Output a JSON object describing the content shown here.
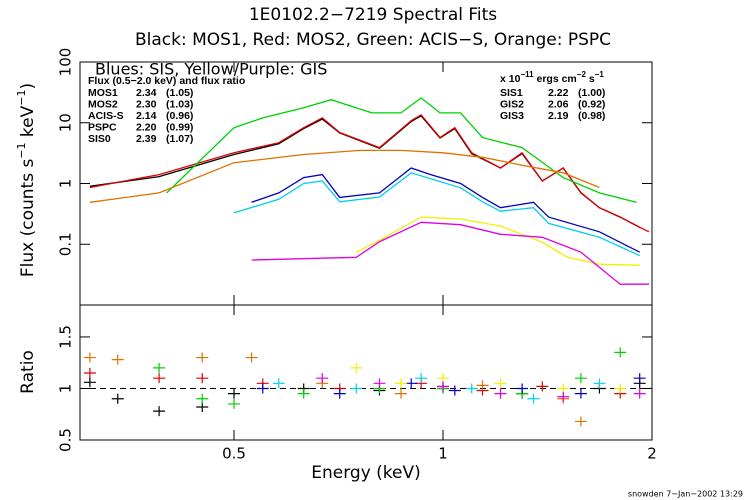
{
  "chart_data": [
    {
      "type": "line",
      "title": "1E0102.2−7219 Spectral Fits",
      "subtitle": "Black: MOS1, Red: MOS2, Green: ACIS−S, Orange: PSPC",
      "annotation": "Blues: SIS, Yellow/Purple: GIS",
      "table_header": "Flux (0.5−2.0 keV) and flux ratio",
      "units_label": [
        "x 10",
        "−11",
        " ergs cm",
        "−2",
        " s",
        "−1"
      ],
      "ylabel": [
        "Flux (counts s",
        "−1",
        " keV",
        "−1",
        ")"
      ],
      "xlog": true,
      "ylog": true,
      "xlim": [
        0.3,
        2
      ],
      "ylim": [
        0.01,
        100
      ],
      "yticks": [
        100,
        10,
        1,
        0.1
      ],
      "series": [
        {
          "name": "MOS1",
          "color": "#000000",
          "flux": 2.34,
          "flux_ratio": "(1.05)",
          "x": [
            0.31,
            0.39,
            0.5,
            0.58,
            0.63,
            0.67,
            0.71,
            0.81,
            0.9,
            0.93,
            0.99,
            1.04,
            1.1,
            1.21,
            1.3,
            1.39,
            1.49,
            1.58,
            1.68,
            1.8,
            1.92
          ],
          "values": [
            0.9,
            1.3,
            3.0,
            4.5,
            8.0,
            11.5,
            6.8,
            3.8,
            10.5,
            13,
            5.6,
            8.0,
            3.1,
            1.8,
            3.1,
            1.1,
            1.8,
            0.7,
            0.4,
            0.28,
            0.19
          ]
        },
        {
          "name": "MOS2",
          "color": "#e00000",
          "flux": 2.3,
          "flux_ratio": "(1.03)",
          "x": [
            0.31,
            0.39,
            0.5,
            0.58,
            0.63,
            0.67,
            0.71,
            0.81,
            0.9,
            0.93,
            0.99,
            1.04,
            1.1,
            1.21,
            1.3,
            1.39,
            1.49,
            1.58,
            1.68,
            1.8,
            1.92,
            1.98
          ],
          "values": [
            0.86,
            1.4,
            3.2,
            4.7,
            8.3,
            12,
            6.9,
            3.9,
            10.8,
            13.5,
            5.7,
            8.3,
            3.2,
            1.8,
            3.2,
            1.1,
            1.8,
            0.71,
            0.4,
            0.28,
            0.19,
            0.16
          ]
        },
        {
          "name": "ACIS-S",
          "color": "#00d000",
          "flux": 2.14,
          "flux_ratio": "(0.96)",
          "x": [
            0.4,
            0.5,
            0.55,
            0.63,
            0.69,
            0.79,
            0.87,
            0.93,
            0.99,
            1.06,
            1.14,
            1.3,
            1.49,
            1.68,
            1.9
          ],
          "values": [
            0.7,
            8.3,
            12,
            17.6,
            24,
            14.5,
            14.5,
            25.6,
            14.5,
            14.5,
            5.7,
            3.9,
            1.25,
            0.7,
            0.49
          ]
        },
        {
          "name": "PSPC",
          "color": "#e07000",
          "flux": 2.2,
          "flux_ratio": "(0.99)",
          "x": [
            0.31,
            0.39,
            0.5,
            0.63,
            0.76,
            0.87,
            1.0,
            1.14,
            1.3,
            1.49,
            1.68
          ],
          "values": [
            0.49,
            0.7,
            2.2,
            3.0,
            3.5,
            3.5,
            3.2,
            2.7,
            2.0,
            1.5,
            0.86
          ]
        },
        {
          "name": "SIS0",
          "color": "#0000c0",
          "flux": 2.39,
          "flux_ratio": "(1.07)",
          "x": [
            0.53,
            0.58,
            0.63,
            0.67,
            0.71,
            0.81,
            0.9,
            0.96,
            1.06,
            1.14,
            1.21,
            1.35,
            1.42,
            1.68,
            1.92
          ],
          "values": [
            0.49,
            0.7,
            1.25,
            1.4,
            0.59,
            0.7,
            1.8,
            1.4,
            1.0,
            0.59,
            0.4,
            0.49,
            0.28,
            0.16,
            0.074
          ]
        },
        {
          "name": "SIS1",
          "color": "#00d0e8",
          "flux": 2.22,
          "flux_ratio": "(1.00)",
          "x": [
            0.5,
            0.58,
            0.63,
            0.67,
            0.71,
            0.81,
            0.9,
            0.96,
            1.06,
            1.14,
            1.21,
            1.35,
            1.42,
            1.68,
            1.92
          ],
          "values": [
            0.33,
            0.55,
            1.0,
            1.1,
            0.5,
            0.6,
            1.5,
            1.2,
            0.85,
            0.5,
            0.35,
            0.4,
            0.22,
            0.13,
            0.065
          ]
        },
        {
          "name": "GIS2",
          "color": "#f0f000",
          "flux": 2.06,
          "flux_ratio": "(0.92)",
          "x": [
            0.75,
            0.81,
            0.93,
            1.06,
            1.21,
            1.39,
            1.51,
            1.68,
            1.92
          ],
          "values": [
            0.074,
            0.116,
            0.28,
            0.26,
            0.2,
            0.108,
            0.061,
            0.047,
            0.045
          ]
        },
        {
          "name": "GIS3",
          "color": "#e000e0",
          "flux": 2.19,
          "flux_ratio": "(0.98)",
          "x": [
            0.53,
            0.75,
            0.81,
            0.93,
            1.06,
            1.21,
            1.39,
            1.58,
            1.8,
            1.98
          ],
          "values": [
            0.055,
            0.061,
            0.11,
            0.23,
            0.21,
            0.146,
            0.13,
            0.074,
            0.022,
            0.022
          ]
        }
      ]
    },
    {
      "type": "scatter",
      "xlabel": "Energy (keV)",
      "ylabel": "Ratio",
      "xlog": true,
      "xlim": [
        0.3,
        2
      ],
      "xticks": [
        0.5,
        1,
        2
      ],
      "ylim": [
        0.5,
        1.81
      ],
      "yticks": [
        0.5,
        1,
        1.5
      ],
      "reference_line": 1,
      "series": [
        {
          "color": "#000000",
          "x": [
            0.31,
            0.34,
            0.39,
            0.45,
            0.5,
            0.63,
            0.81,
            1.0,
            1.3,
            1.68,
            1.92
          ],
          "values": [
            1.06,
            0.9,
            0.78,
            0.82,
            0.95,
            1.0,
            0.98,
            1.0,
            0.95,
            1.0,
            1.05
          ]
        },
        {
          "color": "#e00000",
          "x": [
            0.31,
            0.39,
            0.45,
            0.55,
            0.71,
            0.93,
            1.14,
            1.39,
            1.8
          ],
          "values": [
            1.15,
            1.1,
            1.1,
            1.05,
            1.0,
            1.05,
            0.98,
            1.02,
            0.95
          ]
        },
        {
          "color": "#00d000",
          "x": [
            0.39,
            0.45,
            0.5,
            0.63,
            0.81,
            1.0,
            1.3,
            1.58,
            1.8
          ],
          "values": [
            1.2,
            0.9,
            0.85,
            0.95,
            1.0,
            1.0,
            0.95,
            1.1,
            1.35
          ]
        },
        {
          "color": "#e07000",
          "x": [
            0.31,
            0.34,
            0.45,
            0.53,
            0.67,
            0.87,
            1.14,
            1.49,
            1.58
          ],
          "values": [
            1.3,
            1.28,
            1.3,
            1.3,
            1.05,
            0.95,
            1.03,
            0.9,
            0.68
          ]
        },
        {
          "color": "#0000c0",
          "x": [
            0.55,
            0.71,
            0.9,
            1.04,
            1.3,
            1.58,
            1.92
          ],
          "values": [
            1.0,
            0.95,
            1.05,
            0.98,
            1.0,
            0.95,
            1.1
          ]
        },
        {
          "color": "#00d0e8",
          "x": [
            0.58,
            0.75,
            0.93,
            1.1,
            1.35,
            1.68
          ],
          "values": [
            1.05,
            1.0,
            1.1,
            1.0,
            0.9,
            1.05
          ]
        },
        {
          "color": "#f0f000",
          "x": [
            0.75,
            0.87,
            1.0,
            1.21,
            1.49,
            1.8
          ],
          "values": [
            1.2,
            1.05,
            1.1,
            1.05,
            1.0,
            1.0
          ]
        },
        {
          "color": "#e000e0",
          "x": [
            0.67,
            0.81,
            1.0,
            1.21,
            1.49,
            1.92
          ],
          "values": [
            1.1,
            1.05,
            1.02,
            0.95,
            0.92,
            0.95
          ]
        }
      ]
    }
  ],
  "footer": "snowden  7−Jan−2002 13:29"
}
